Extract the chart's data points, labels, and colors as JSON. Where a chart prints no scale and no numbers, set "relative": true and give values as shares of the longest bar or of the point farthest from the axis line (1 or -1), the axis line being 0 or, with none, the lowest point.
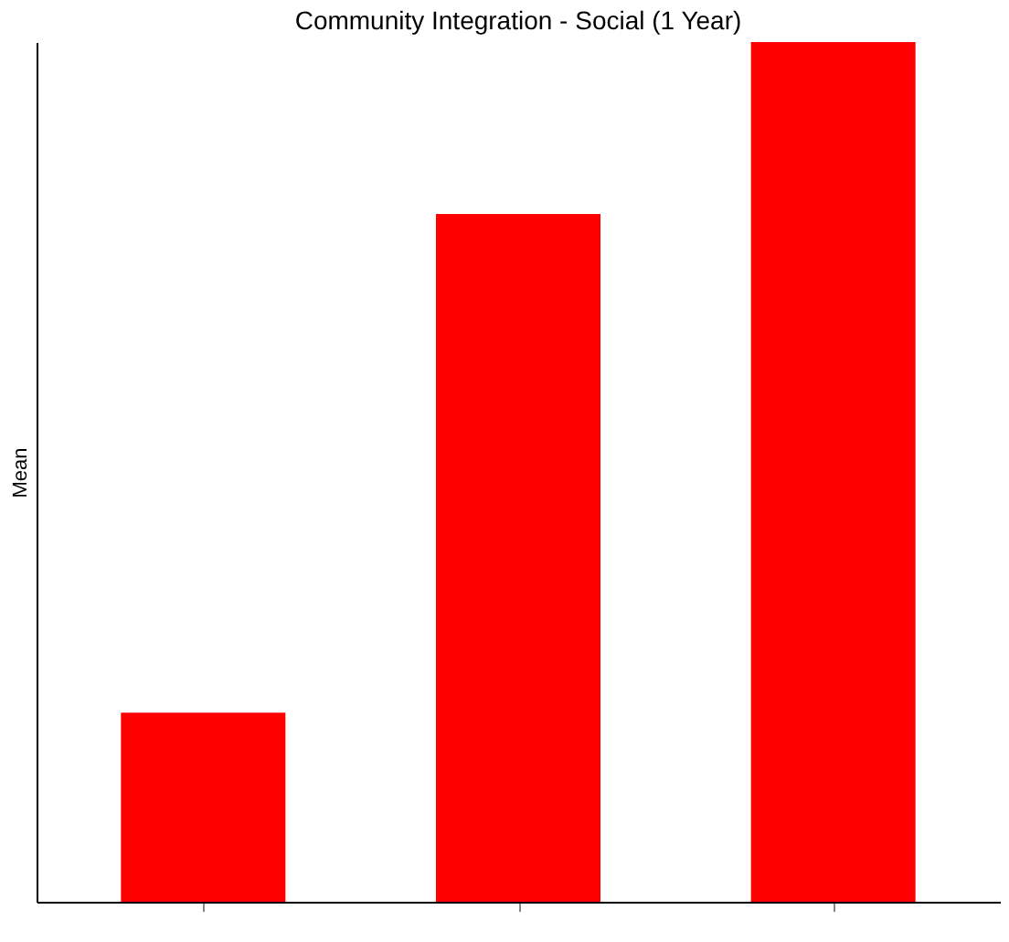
{
  "chart_data": {
    "type": "bar",
    "title": "Community Integration - Social (1 Year)",
    "ylabel": "Mean",
    "categories": [
      null,
      null,
      null
    ],
    "values": [
      0.22,
      0.8,
      1
    ],
    "color": "#ff0000",
    "relative": true,
    "grid": false
  }
}
